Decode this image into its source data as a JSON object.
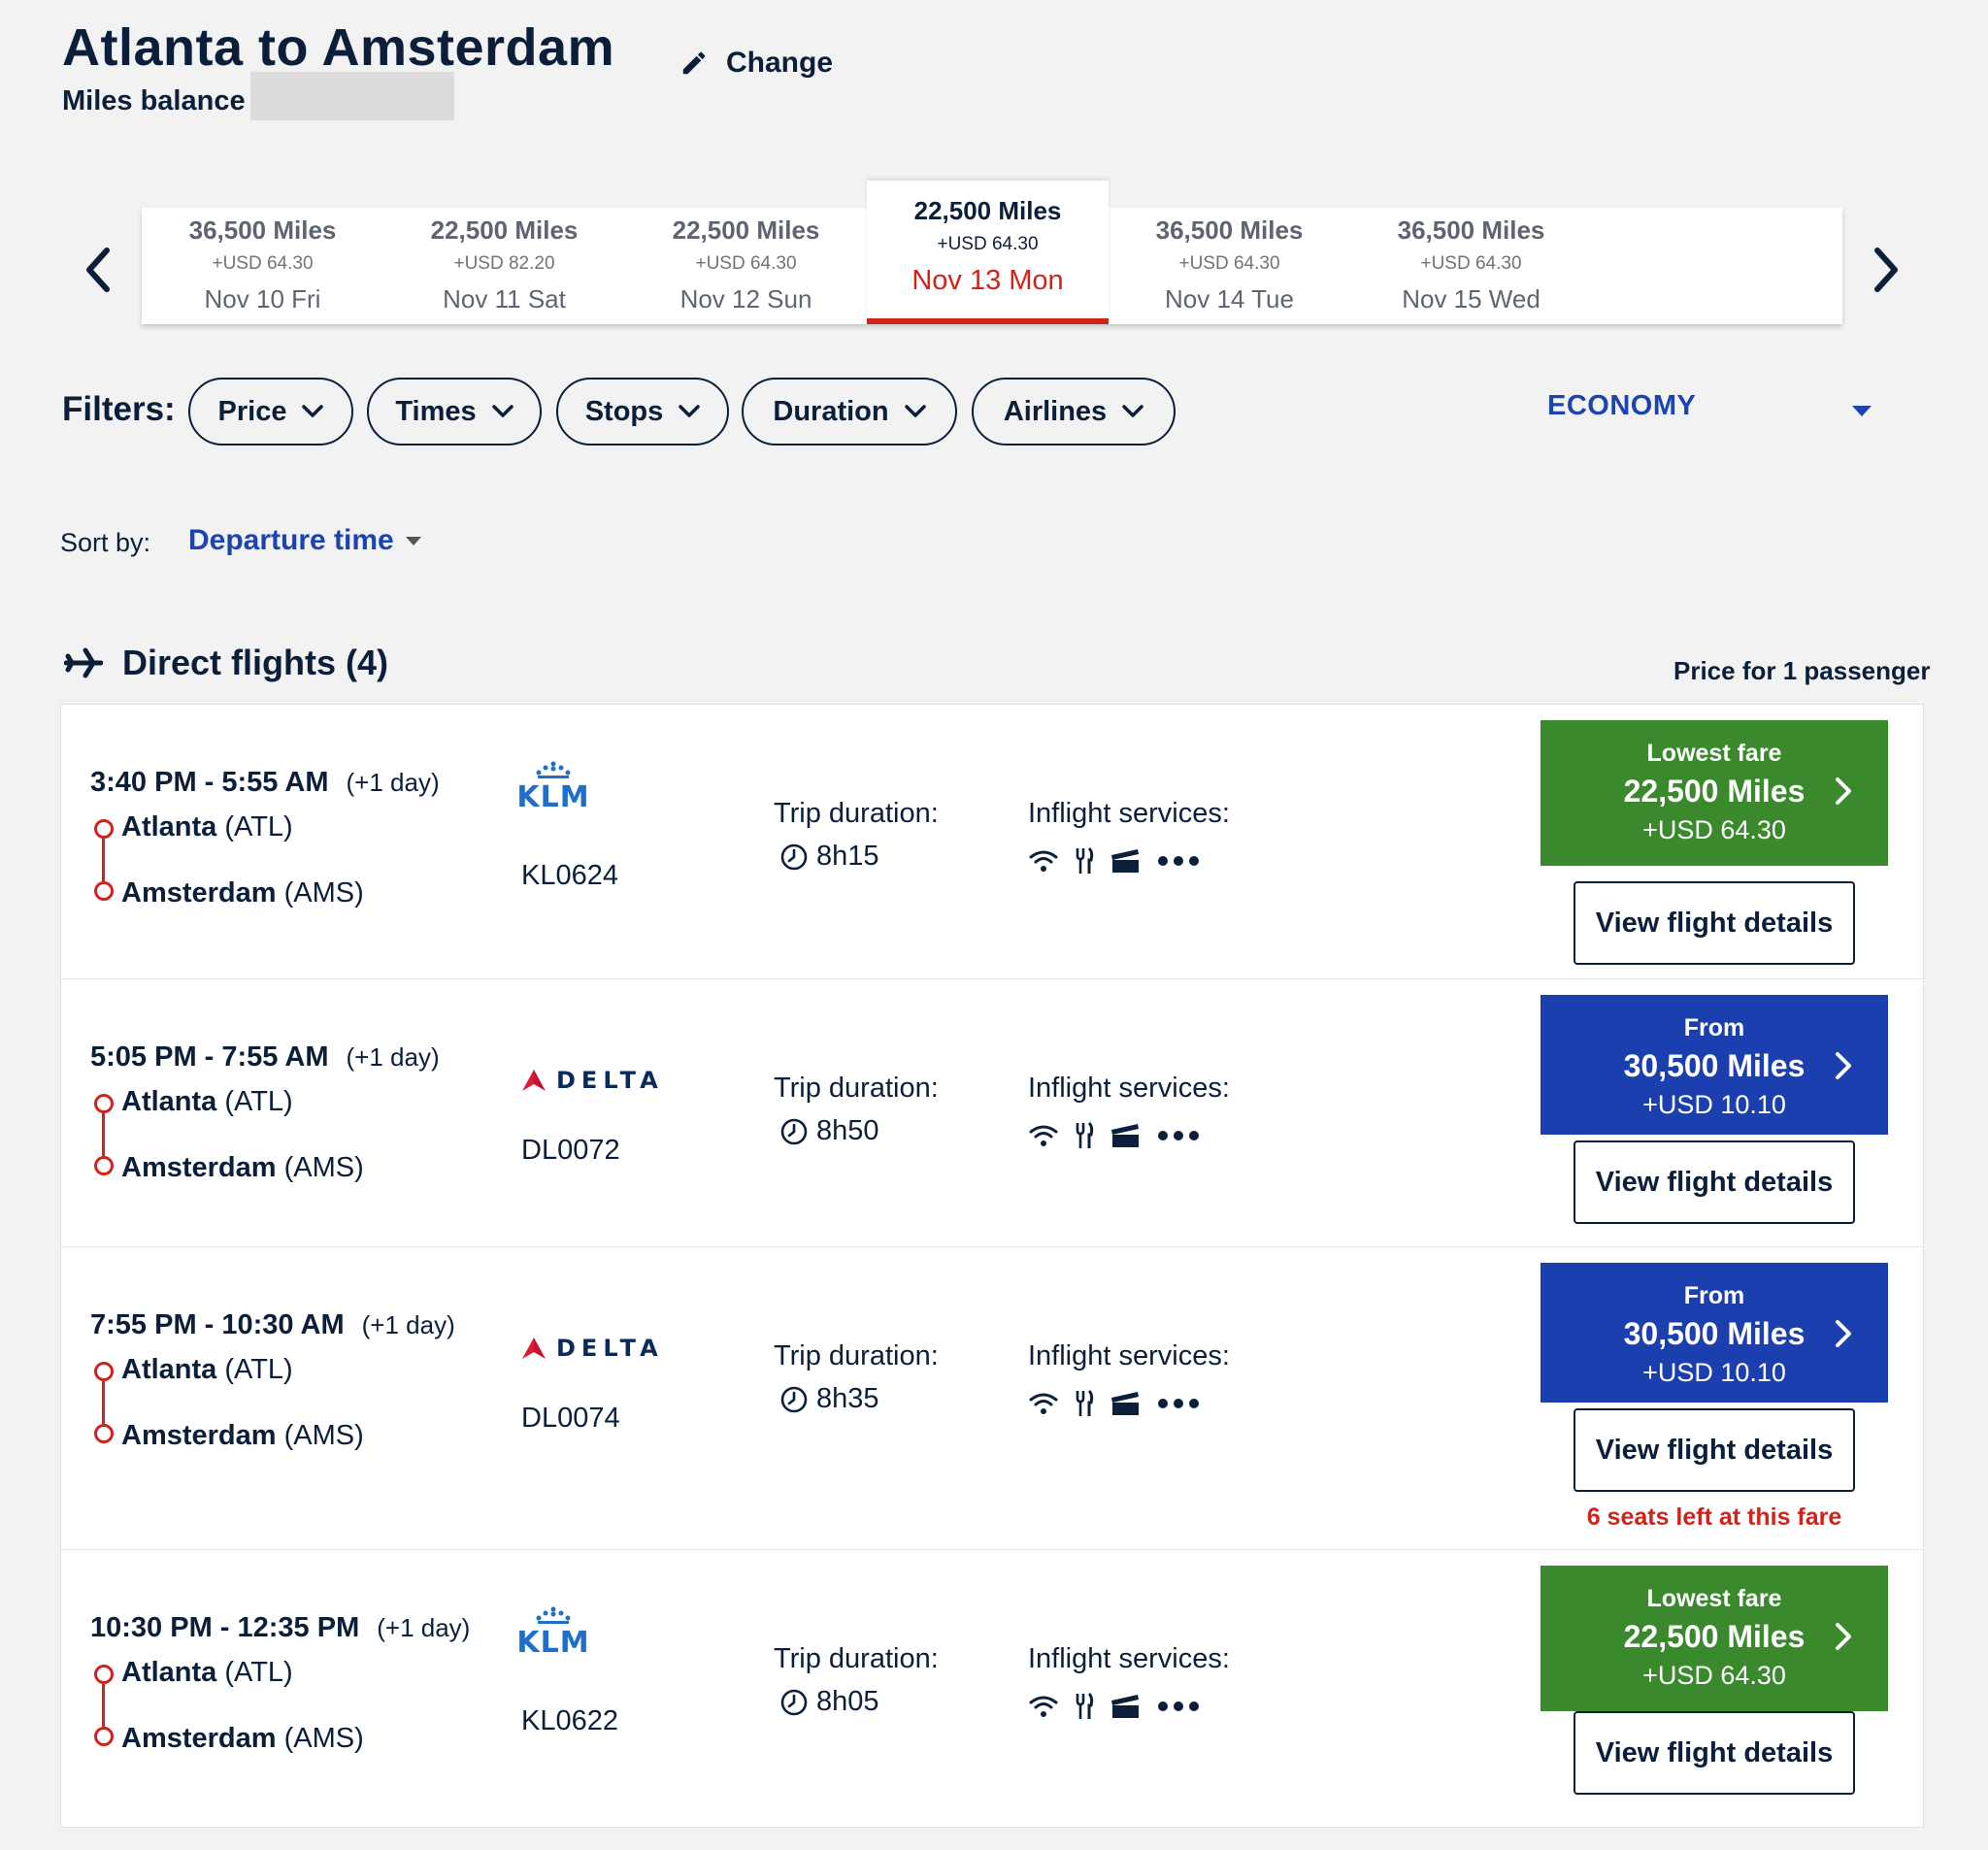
{
  "header": {
    "title": "Atlanta to Amsterdam",
    "miles_label": "Miles balance",
    "change_label": "Change"
  },
  "dates": [
    {
      "miles": "36,500 Miles",
      "usd": "+USD 64.30",
      "day": "Nov 10 Fri",
      "selected": false
    },
    {
      "miles": "22,500 Miles",
      "usd": "+USD 82.20",
      "day": "Nov 11 Sat",
      "selected": false
    },
    {
      "miles": "22,500 Miles",
      "usd": "+USD 64.30",
      "day": "Nov 12 Sun",
      "selected": false
    },
    {
      "miles": "22,500 Miles",
      "usd": "+USD 64.30",
      "day": "Nov 13 Mon",
      "selected": true
    },
    {
      "miles": "36,500 Miles",
      "usd": "+USD 64.30",
      "day": "Nov 14 Tue",
      "selected": false
    },
    {
      "miles": "36,500 Miles",
      "usd": "+USD 64.30",
      "day": "Nov 15 Wed",
      "selected": false
    }
  ],
  "filters": {
    "label": "Filters:",
    "items": [
      "Price",
      "Times",
      "Stops",
      "Duration",
      "Airlines"
    ],
    "cabin": "ECONOMY"
  },
  "sort": {
    "label": "Sort by:",
    "value": "Departure time"
  },
  "section": {
    "title": "Direct flights (4)",
    "price_for": "Price for 1 passenger"
  },
  "flights": [
    {
      "times": "3:40 PM - 5:55 AM",
      "plus_day": "(+1 day)",
      "from_city": "Atlanta",
      "from_code": "(ATL)",
      "to_city": "Amsterdam",
      "to_code": "(AMS)",
      "airline": "KLM",
      "airline_logo": "klm-logo",
      "flight_no": "KL0624",
      "trip_label": "Trip duration:",
      "duration": "8h15",
      "services_label": "Inflight services:",
      "fare_type": "green",
      "fare_title": "Lowest fare",
      "fare_miles": "22,500 Miles",
      "fare_usd": "+USD 64.30",
      "details_label": "View flight details",
      "seats_left": ""
    },
    {
      "times": "5:05 PM - 7:55 AM",
      "plus_day": "(+1 day)",
      "from_city": "Atlanta",
      "from_code": "(ATL)",
      "to_city": "Amsterdam",
      "to_code": "(AMS)",
      "airline": "DELTA",
      "airline_logo": "delta-logo",
      "flight_no": "DL0072",
      "trip_label": "Trip duration:",
      "duration": "8h50",
      "services_label": "Inflight services:",
      "fare_type": "blue",
      "fare_title": "From",
      "fare_miles": "30,500 Miles",
      "fare_usd": "+USD 10.10",
      "details_label": "View flight details",
      "seats_left": ""
    },
    {
      "times": "7:55 PM - 10:30 AM",
      "plus_day": "(+1 day)",
      "from_city": "Atlanta",
      "from_code": "(ATL)",
      "to_city": "Amsterdam",
      "to_code": "(AMS)",
      "airline": "DELTA",
      "airline_logo": "delta-logo",
      "flight_no": "DL0074",
      "trip_label": "Trip duration:",
      "duration": "8h35",
      "services_label": "Inflight services:",
      "fare_type": "blue",
      "fare_title": "From",
      "fare_miles": "30,500 Miles",
      "fare_usd": "+USD 10.10",
      "details_label": "View flight details",
      "seats_left": "6 seats left at this fare"
    },
    {
      "times": "10:30 PM - 12:35 PM",
      "plus_day": "(+1 day)",
      "from_city": "Atlanta",
      "from_code": "(ATL)",
      "to_city": "Amsterdam",
      "to_code": "(AMS)",
      "airline": "KLM",
      "airline_logo": "klm-logo",
      "flight_no": "KL0622",
      "trip_label": "Trip duration:",
      "duration": "8h05",
      "services_label": "Inflight services:",
      "fare_type": "green",
      "fare_title": "Lowest fare",
      "fare_miles": "22,500 Miles",
      "fare_usd": "+USD 64.30",
      "details_label": "View flight details",
      "seats_left": ""
    }
  ],
  "colors": {
    "navy": "#0b1f3a",
    "accent_blue": "#1c44b0",
    "fare_green": "#3a8a2d",
    "fare_blue": "#1c3fb0",
    "red": "#d0241b"
  }
}
